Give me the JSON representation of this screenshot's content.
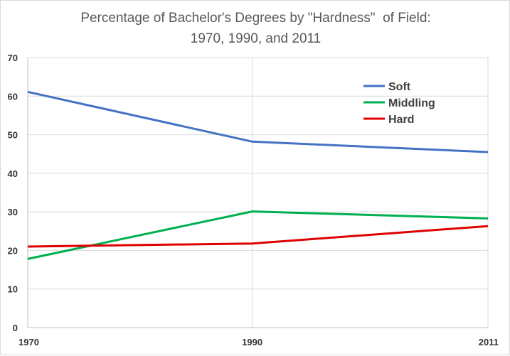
{
  "chart_data": {
    "type": "line",
    "title_lines": [
      "Percentage of Bachelor's Degrees by \"Hardness\"  of Field:",
      "1970, 1990, and 2011"
    ],
    "xlabel": "",
    "ylabel": "",
    "x": [
      1970,
      1990,
      2011
    ],
    "x_tick_labels": [
      "1970",
      "1990",
      "2011"
    ],
    "ylim": [
      0,
      70
    ],
    "y_ticks": [
      0,
      10,
      20,
      30,
      40,
      50,
      60,
      70
    ],
    "grid": true,
    "legend_position": "top-right",
    "series": [
      {
        "name": "Soft",
        "values": [
          61.1,
          48.2,
          45.5
        ],
        "color": "#4472C4"
      },
      {
        "name": "Middling",
        "values": [
          17.8,
          30.1,
          28.3
        ],
        "color": "#00B050"
      },
      {
        "name": "Hard",
        "values": [
          21.0,
          21.8,
          26.3
        ],
        "color": "#E00000"
      }
    ]
  }
}
